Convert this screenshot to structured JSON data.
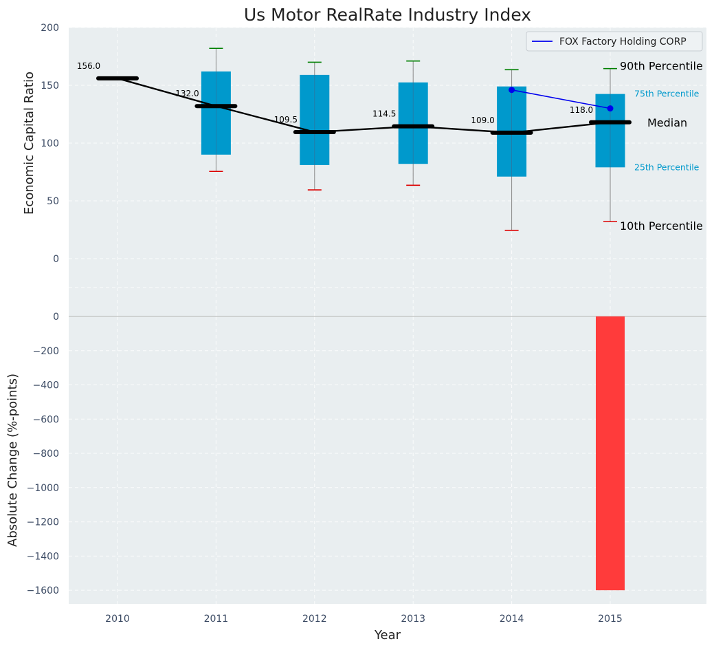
{
  "chart_data": [
    {
      "type": "box",
      "title": "Us Motor RealRate Industry Index",
      "ylabel": "Economic Capital Ratio",
      "ylim": [
        0,
        200
      ],
      "yticks": [
        0,
        50,
        100,
        150,
        200
      ],
      "grid": true,
      "categories": [
        "2010",
        "2011",
        "2012",
        "2013",
        "2014",
        "2015"
      ],
      "boxes": [
        {
          "year": "2010",
          "p10": 156.0,
          "p25": 156.0,
          "median": 156.0,
          "p75": 156.0,
          "p90": 156.0
        },
        {
          "year": "2011",
          "p10": 75.5,
          "p25": 90.0,
          "median": 132.0,
          "p75": 162.0,
          "p90": 182.0
        },
        {
          "year": "2012",
          "p10": 59.5,
          "p25": 81.0,
          "median": 109.5,
          "p75": 159.0,
          "p90": 170.0
        },
        {
          "year": "2013",
          "p10": 63.5,
          "p25": 82.0,
          "median": 114.5,
          "p75": 152.5,
          "p90": 171.0
        },
        {
          "year": "2014",
          "p10": 24.5,
          "p25": 71.0,
          "median": 109.0,
          "p75": 149.0,
          "p90": 163.5
        },
        {
          "year": "2015",
          "p10": 32.0,
          "p25": 79.0,
          "median": 118.0,
          "p75": 142.5,
          "p90": 164.5
        }
      ],
      "median_labels": [
        "156.0",
        "132.0",
        "109.5",
        "114.5",
        "109.0",
        "118.0"
      ],
      "series": [
        {
          "name": "FOX Factory Holding CORP",
          "x": [
            "2014",
            "2015"
          ],
          "values": [
            146.0,
            130.0
          ],
          "color": "#0000ee"
        }
      ],
      "legend": {
        "position": "top-right",
        "entries": [
          "FOX Factory Holding CORP"
        ]
      },
      "percentile_labels": {
        "p90": "90th Percentile",
        "p75": "75th Percentile",
        "median": "Median",
        "p25": "25th Percentile",
        "p10": "10th Percentile"
      },
      "colors": {
        "box": "#0099cc",
        "median": "#000000",
        "p90_cap": "#008000",
        "p10_cap": "#dd0000",
        "whisker": "#888888",
        "background": "#e9eef0"
      }
    },
    {
      "type": "bar",
      "xlabel": "Year",
      "ylabel": "Absolute Change (%-points)",
      "ylim": [
        -1680,
        0
      ],
      "yticks": [
        0,
        -200,
        -400,
        -600,
        -800,
        -1000,
        -1200,
        -1400,
        -1600
      ],
      "ytick_labels": [
        "0",
        "−200",
        "−400",
        "−600",
        "−800",
        "−1000",
        "−1200",
        "−1400",
        "−1600"
      ],
      "categories": [
        "2010",
        "2011",
        "2012",
        "2013",
        "2014",
        "2015"
      ],
      "values": [
        null,
        null,
        null,
        null,
        null,
        -1600
      ],
      "grid": true,
      "colors": {
        "bar": "#ff3b3b",
        "background": "#e9eef0"
      }
    }
  ]
}
